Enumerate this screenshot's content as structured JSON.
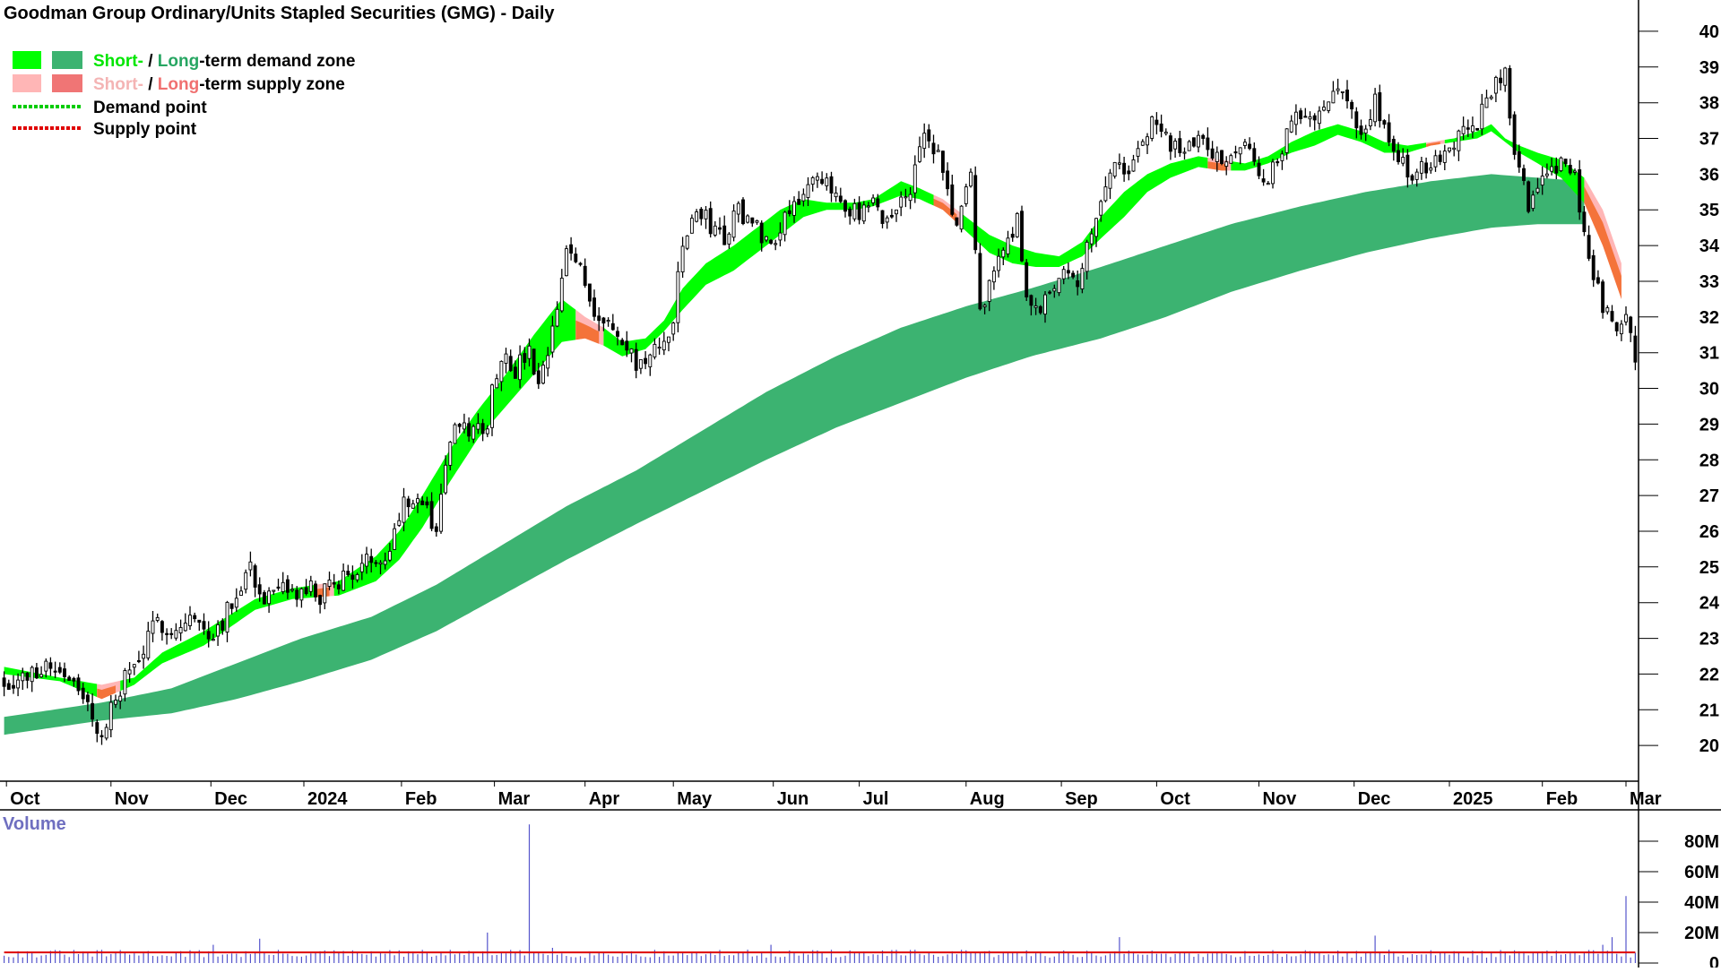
{
  "chart_data": {
    "type": "candlestick",
    "title": "Goodman Group Ordinary/Units Stapled Securities (GMG) - Daily",
    "legend": {
      "items": [
        {
          "parts": [
            {
              "text": "Short-",
              "color": "#00e600"
            },
            {
              "text": " / ",
              "color": "#000000"
            },
            {
              "text": "Long",
              "color": "#27a662"
            },
            {
              "text": "-term demand zone",
              "color": "#000000"
            }
          ],
          "swatches": [
            "#00ff00",
            "#3cb371"
          ]
        },
        {
          "parts": [
            {
              "text": "Short-",
              "color": "#f4b4b4"
            },
            {
              "text": " / ",
              "color": "#000000"
            },
            {
              "text": "Long",
              "color": "#f07070"
            },
            {
              "text": "-term supply zone",
              "color": "#000000"
            }
          ],
          "swatches": [
            "#ffb6b6",
            "#f07575"
          ]
        },
        {
          "parts": [
            {
              "text": "Demand point",
              "color": "#000000"
            }
          ],
          "line_color": "#00cc00"
        },
        {
          "parts": [
            {
              "text": "Supply point",
              "color": "#000000"
            }
          ],
          "line_color": "#e00000"
        }
      ]
    },
    "x_axis": {
      "tick_labels": [
        "Oct",
        "Nov",
        "Dec",
        "2024",
        "Feb",
        "Mar",
        "Apr",
        "May",
        "Jun",
        "Jul",
        "Aug",
        "Sep",
        "Oct",
        "Nov",
        "Dec",
        "2025",
        "Feb",
        "Mar"
      ],
      "tick_positions": [
        0.5,
        23,
        44.5,
        64.5,
        85.5,
        105.5,
        125,
        144,
        165.5,
        184,
        207,
        227.5,
        248,
        270,
        290.5,
        311,
        331,
        349
      ]
    },
    "y_axis": {
      "range": [
        19,
        40.5
      ],
      "ticks": [
        20,
        21,
        22,
        23,
        24,
        25,
        26,
        27,
        28,
        29,
        30,
        31,
        32,
        33,
        34,
        35,
        36,
        37,
        38,
        39,
        40
      ],
      "side": "right"
    },
    "price_path": [
      [
        0,
        21.8
      ],
      [
        5,
        21.9
      ],
      [
        9,
        22.3
      ],
      [
        14,
        22.0
      ],
      [
        16,
        21.4
      ],
      [
        19,
        20.9
      ],
      [
        21,
        20.1
      ],
      [
        23,
        21.0
      ],
      [
        26,
        21.9
      ],
      [
        29,
        22.4
      ],
      [
        33,
        23.5
      ],
      [
        37,
        23.2
      ],
      [
        40,
        23.6
      ],
      [
        44,
        23.1
      ],
      [
        47,
        23.5
      ],
      [
        50,
        24.3
      ],
      [
        53,
        25.1
      ],
      [
        55,
        24.2
      ],
      [
        57,
        24.1
      ],
      [
        60,
        24.3
      ],
      [
        64,
        24.2
      ],
      [
        66,
        24.4
      ],
      [
        68,
        24.1
      ],
      [
        71,
        24.6
      ],
      [
        75,
        24.8
      ],
      [
        80,
        25.3
      ],
      [
        83,
        25.5
      ],
      [
        86,
        27.0
      ],
      [
        90,
        26.8
      ],
      [
        93,
        26.0
      ],
      [
        95,
        28.0
      ],
      [
        97,
        28.8
      ],
      [
        100,
        28.8
      ],
      [
        104,
        29.0
      ],
      [
        105,
        30.0
      ],
      [
        107,
        31.0
      ],
      [
        110,
        30.5
      ],
      [
        113,
        31.0
      ],
      [
        115,
        29.9
      ],
      [
        118,
        31.5
      ],
      [
        121,
        33.8
      ],
      [
        124,
        33.5
      ],
      [
        126,
        32.5
      ],
      [
        128,
        32.0
      ],
      [
        130,
        31.8
      ],
      [
        133,
        31.2
      ],
      [
        136,
        30.7
      ],
      [
        139,
        30.8
      ],
      [
        142,
        31.3
      ],
      [
        144,
        32.0
      ],
      [
        146,
        34.0
      ],
      [
        149,
        35.0
      ],
      [
        152,
        34.6
      ],
      [
        155,
        34.2
      ],
      [
        158,
        35.0
      ],
      [
        162,
        34.5
      ],
      [
        165,
        34.0
      ],
      [
        168,
        34.9
      ],
      [
        171,
        35.4
      ],
      [
        174,
        35.7
      ],
      [
        178,
        35.6
      ],
      [
        181,
        35.2
      ],
      [
        184,
        34.8
      ],
      [
        187,
        35.1
      ],
      [
        189,
        34.7
      ],
      [
        192,
        35.0
      ],
      [
        195,
        35.7
      ],
      [
        198,
        37.0
      ],
      [
        201,
        36.5
      ],
      [
        203,
        35.5
      ],
      [
        205,
        34.5
      ],
      [
        207,
        35.5
      ],
      [
        208,
        36.0
      ],
      [
        210,
        32.0
      ],
      [
        212,
        33.2
      ],
      [
        214,
        33.5
      ],
      [
        216,
        34.2
      ],
      [
        218,
        34.8
      ],
      [
        220,
        32.5
      ],
      [
        222,
        32.1
      ],
      [
        225,
        32.7
      ],
      [
        228,
        33.5
      ],
      [
        231,
        33.1
      ],
      [
        234,
        34.2
      ],
      [
        236,
        35.5
      ],
      [
        239,
        36.2
      ],
      [
        242,
        36.0
      ],
      [
        245,
        37.0
      ],
      [
        248,
        37.5
      ],
      [
        251,
        36.8
      ],
      [
        254,
        36.5
      ],
      [
        257,
        37.2
      ],
      [
        260,
        36.5
      ],
      [
        263,
        36.4
      ],
      [
        266,
        37.0
      ],
      [
        269,
        36.2
      ],
      [
        272,
        35.9
      ],
      [
        275,
        36.8
      ],
      [
        278,
        37.5
      ],
      [
        281,
        37.6
      ],
      [
        284,
        38.1
      ],
      [
        287,
        38.4
      ],
      [
        290,
        37.8
      ],
      [
        292,
        37.0
      ],
      [
        295,
        38.0
      ],
      [
        297,
        37.2
      ],
      [
        299,
        36.5
      ],
      [
        302,
        36.1
      ],
      [
        304,
        36.0
      ],
      [
        306,
        36.3
      ],
      [
        308,
        36.5
      ],
      [
        311,
        36.8
      ],
      [
        313,
        37.0
      ],
      [
        315,
        37.5
      ],
      [
        317,
        37.2
      ],
      [
        319,
        38.2
      ],
      [
        321,
        38.5
      ],
      [
        323,
        38.9
      ],
      [
        324,
        37.6
      ],
      [
        326,
        36.0
      ],
      [
        328,
        35.2
      ],
      [
        330,
        35.6
      ],
      [
        332,
        35.8
      ],
      [
        334,
        36.3
      ],
      [
        336,
        36.1
      ],
      [
        338,
        36.3
      ],
      [
        339,
        35.0
      ],
      [
        341,
        33.5
      ],
      [
        343,
        32.8
      ],
      [
        345,
        32.0
      ],
      [
        347,
        31.6
      ],
      [
        349,
        32.0
      ],
      [
        350,
        31.5
      ],
      [
        351,
        30.6
      ]
    ],
    "short_term_zone": {
      "upper": [
        [
          0,
          22.2
        ],
        [
          12,
          21.9
        ],
        [
          21,
          21.7
        ],
        [
          28,
          21.9
        ],
        [
          34,
          22.6
        ],
        [
          43,
          23.2
        ],
        [
          54,
          24.1
        ],
        [
          62,
          24.4
        ],
        [
          72,
          24.6
        ],
        [
          80,
          25.3
        ],
        [
          85,
          26.0
        ],
        [
          90,
          27.0
        ],
        [
          96,
          28.3
        ],
        [
          102,
          29.4
        ],
        [
          108,
          30.4
        ],
        [
          114,
          31.5
        ],
        [
          120,
          32.5
        ],
        [
          125,
          32.0
        ],
        [
          129,
          31.7
        ],
        [
          133,
          31.3
        ],
        [
          138,
          31.4
        ],
        [
          142,
          31.9
        ],
        [
          146,
          32.8
        ],
        [
          151,
          33.5
        ],
        [
          157,
          34.0
        ],
        [
          162,
          34.5
        ],
        [
          167,
          35.0
        ],
        [
          172,
          35.3
        ],
        [
          177,
          35.2
        ],
        [
          183,
          35.2
        ],
        [
          187,
          35.3
        ],
        [
          193,
          35.8
        ],
        [
          197,
          35.6
        ],
        [
          202,
          35.3
        ],
        [
          207,
          34.8
        ],
        [
          212,
          34.3
        ],
        [
          217,
          34.0
        ],
        [
          222,
          33.8
        ],
        [
          227,
          33.7
        ],
        [
          232,
          34.1
        ],
        [
          236,
          34.8
        ],
        [
          241,
          35.5
        ],
        [
          246,
          36.0
        ],
        [
          251,
          36.3
        ],
        [
          257,
          36.5
        ],
        [
          262,
          36.4
        ],
        [
          267,
          36.3
        ],
        [
          272,
          36.5
        ],
        [
          277,
          36.9
        ],
        [
          282,
          37.2
        ],
        [
          287,
          37.4
        ],
        [
          292,
          37.2
        ],
        [
          297,
          36.9
        ],
        [
          302,
          36.8
        ],
        [
          307,
          36.9
        ],
        [
          312,
          37.0
        ],
        [
          317,
          37.2
        ],
        [
          320,
          37.4
        ],
        [
          323,
          37.0
        ],
        [
          326,
          36.8
        ],
        [
          330,
          36.6
        ],
        [
          335,
          36.4
        ],
        [
          340,
          35.9
        ],
        [
          344,
          35.0
        ],
        [
          348,
          33.5
        ]
      ],
      "lower": [
        [
          0,
          22.0
        ],
        [
          12,
          21.8
        ],
        [
          21,
          21.3
        ],
        [
          28,
          21.7
        ],
        [
          34,
          22.3
        ],
        [
          43,
          22.8
        ],
        [
          54,
          23.8
        ],
        [
          62,
          24.1
        ],
        [
          72,
          24.2
        ],
        [
          80,
          24.6
        ],
        [
          85,
          25.2
        ],
        [
          90,
          26.1
        ],
        [
          96,
          27.4
        ],
        [
          102,
          28.6
        ],
        [
          108,
          29.5
        ],
        [
          114,
          30.4
        ],
        [
          120,
          31.3
        ],
        [
          125,
          31.4
        ],
        [
          129,
          31.2
        ],
        [
          133,
          30.9
        ],
        [
          138,
          31.1
        ],
        [
          142,
          31.6
        ],
        [
          146,
          32.2
        ],
        [
          151,
          32.9
        ],
        [
          157,
          33.3
        ],
        [
          162,
          33.8
        ],
        [
          167,
          34.3
        ],
        [
          172,
          34.8
        ],
        [
          177,
          35.0
        ],
        [
          183,
          35.0
        ],
        [
          187,
          35.1
        ],
        [
          193,
          35.4
        ],
        [
          197,
          35.3
        ],
        [
          202,
          35.0
        ],
        [
          207,
          34.4
        ],
        [
          212,
          33.8
        ],
        [
          217,
          33.5
        ],
        [
          222,
          33.4
        ],
        [
          227,
          33.4
        ],
        [
          232,
          33.7
        ],
        [
          236,
          34.2
        ],
        [
          241,
          34.8
        ],
        [
          246,
          35.5
        ],
        [
          251,
          35.9
        ],
        [
          257,
          36.2
        ],
        [
          262,
          36.1
        ],
        [
          267,
          36.1
        ],
        [
          272,
          36.3
        ],
        [
          277,
          36.6
        ],
        [
          282,
          36.8
        ],
        [
          287,
          37.1
        ],
        [
          292,
          36.9
        ],
        [
          297,
          36.6
        ],
        [
          302,
          36.6
        ],
        [
          307,
          36.8
        ],
        [
          312,
          36.9
        ],
        [
          317,
          37.0
        ],
        [
          320,
          37.2
        ],
        [
          323,
          36.9
        ],
        [
          326,
          36.6
        ],
        [
          330,
          36.3
        ],
        [
          335,
          35.9
        ],
        [
          340,
          35.2
        ],
        [
          344,
          34.0
        ],
        [
          348,
          32.5
        ]
      ]
    },
    "long_term_zone": {
      "upper": [
        [
          0,
          20.8
        ],
        [
          21,
          21.2
        ],
        [
          36,
          21.6
        ],
        [
          50,
          22.3
        ],
        [
          64,
          23.0
        ],
        [
          79,
          23.6
        ],
        [
          93,
          24.5
        ],
        [
          107,
          25.6
        ],
        [
          121,
          26.7
        ],
        [
          136,
          27.7
        ],
        [
          150,
          28.8
        ],
        [
          164,
          29.9
        ],
        [
          179,
          30.9
        ],
        [
          193,
          31.7
        ],
        [
          207,
          32.3
        ],
        [
          221,
          32.8
        ],
        [
          236,
          33.4
        ],
        [
          250,
          34.0
        ],
        [
          264,
          34.6
        ],
        [
          279,
          35.1
        ],
        [
          293,
          35.5
        ],
        [
          307,
          35.8
        ],
        [
          320,
          36.0
        ],
        [
          330,
          35.9
        ],
        [
          340,
          35.8
        ]
      ],
      "lower": [
        [
          0,
          20.3
        ],
        [
          21,
          20.7
        ],
        [
          36,
          20.9
        ],
        [
          50,
          21.3
        ],
        [
          64,
          21.8
        ],
        [
          79,
          22.4
        ],
        [
          93,
          23.2
        ],
        [
          107,
          24.2
        ],
        [
          121,
          25.2
        ],
        [
          136,
          26.2
        ],
        [
          150,
          27.1
        ],
        [
          164,
          28.0
        ],
        [
          179,
          28.9
        ],
        [
          193,
          29.6
        ],
        [
          207,
          30.3
        ],
        [
          221,
          30.9
        ],
        [
          236,
          31.4
        ],
        [
          250,
          32.0
        ],
        [
          264,
          32.7
        ],
        [
          279,
          33.3
        ],
        [
          293,
          33.8
        ],
        [
          307,
          34.2
        ],
        [
          320,
          34.5
        ],
        [
          330,
          34.6
        ],
        [
          340,
          34.6
        ]
      ]
    },
    "supply_segments": [
      [
        20,
        24
      ],
      [
        67,
        70
      ],
      [
        123,
        128
      ],
      [
        200,
        205
      ],
      [
        259,
        263
      ],
      [
        306,
        309
      ],
      [
        340,
        348
      ]
    ],
    "volume": {
      "label": "Volume",
      "axis_ticks": [
        0,
        20,
        40,
        60,
        80
      ],
      "axis_tick_labels": [
        "0",
        "20M",
        "40M",
        "60M",
        "80M"
      ],
      "average_level": 7,
      "spikes": [
        [
          45,
          12
        ],
        [
          55,
          16
        ],
        [
          104,
          20
        ],
        [
          113,
          91
        ],
        [
          118,
          10
        ],
        [
          165,
          12
        ],
        [
          240,
          17
        ],
        [
          295,
          18
        ],
        [
          344,
          12
        ],
        [
          346,
          17
        ],
        [
          349,
          44
        ]
      ]
    }
  }
}
